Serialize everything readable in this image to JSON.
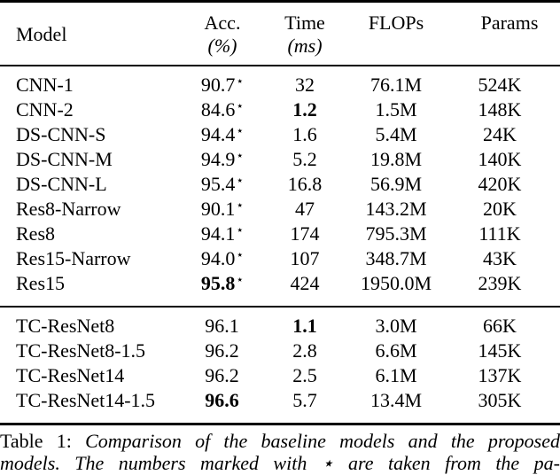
{
  "table": {
    "header": {
      "model": "Model",
      "acc_line1": "Acc.",
      "acc_line2": "(%)",
      "time_line1": "Time",
      "time_line2": "(ms)",
      "flops": "FLOPs",
      "params": "Params"
    },
    "baseline_rows": [
      {
        "model": "CNN-1",
        "acc": "90.7",
        "star": "⋆",
        "time": "32",
        "flops": "76.1M",
        "params": "524K"
      },
      {
        "model": "CNN-2",
        "acc": "84.6",
        "star": "⋆",
        "time": "1.2",
        "flops": "1.5M",
        "params": "148K"
      },
      {
        "model": "DS-CNN-S",
        "acc": "94.4",
        "star": "⋆",
        "time": "1.6",
        "flops": "5.4M",
        "params": "24K"
      },
      {
        "model": "DS-CNN-M",
        "acc": "94.9",
        "star": "⋆",
        "time": "5.2",
        "flops": "19.8M",
        "params": "140K"
      },
      {
        "model": "DS-CNN-L",
        "acc": "95.4",
        "star": "⋆",
        "time": "16.8",
        "flops": "56.9M",
        "params": "420K"
      },
      {
        "model": "Res8-Narrow",
        "acc": "90.1",
        "star": "⋆",
        "time": "47",
        "flops": "143.2M",
        "params": "20K"
      },
      {
        "model": "Res8",
        "acc": "94.1",
        "star": "⋆",
        "time": "174",
        "flops": "795.3M",
        "params": "111K"
      },
      {
        "model": "Res15-Narrow",
        "acc": "94.0",
        "star": "⋆",
        "time": "107",
        "flops": "348.7M",
        "params": "43K"
      },
      {
        "model": "Res15",
        "acc": "95.8",
        "star": "⋆",
        "time": "424",
        "flops": "1950.0M",
        "params": "239K"
      }
    ],
    "proposed_rows": [
      {
        "model": "TC-ResNet8",
        "acc": "96.1",
        "star": "",
        "time": "1.1",
        "flops": "3.0M",
        "params": "66K"
      },
      {
        "model": "TC-ResNet8-1.5",
        "acc": "96.2",
        "star": "",
        "time": "2.8",
        "flops": "6.6M",
        "params": "145K"
      },
      {
        "model": "TC-ResNet14",
        "acc": "96.2",
        "star": "",
        "time": "2.5",
        "flops": "6.1M",
        "params": "137K"
      },
      {
        "model": "TC-ResNet14-1.5",
        "acc": "96.6",
        "star": "",
        "time": "5.7",
        "flops": "13.4M",
        "params": "305K"
      }
    ],
    "emphasis_note": "bold values: CNN-2 time 1.2, Res15 acc 95.8, TC-ResNet8 time 1.1, TC-ResNet14-1.5 acc 96.6"
  },
  "caption": {
    "label": "Table 1:",
    "line1": "Comparison of the baseline models and the proposed",
    "line2": "models. The numbers marked with ⋆ are taken from the pa-"
  }
}
